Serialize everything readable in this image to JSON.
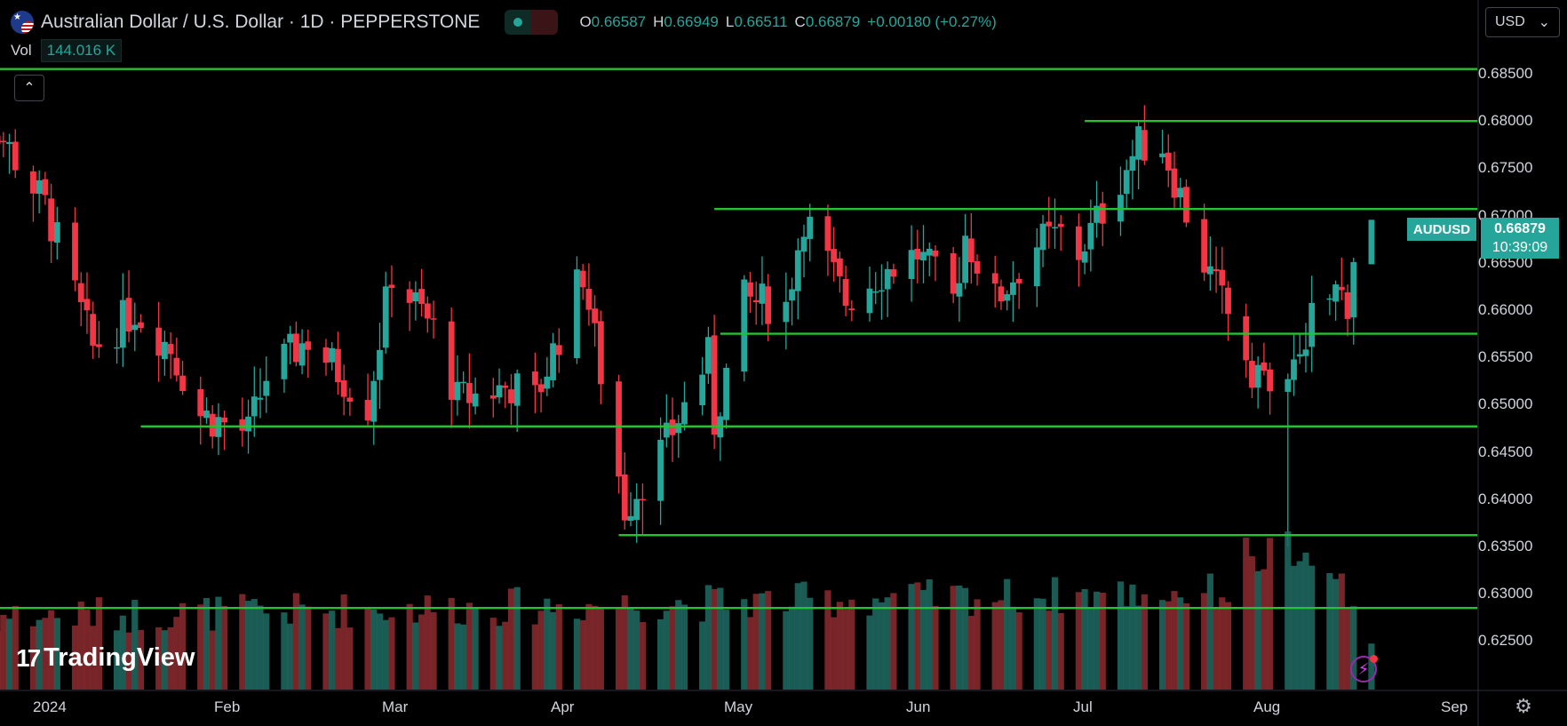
{
  "header": {
    "title": "Australian Dollar / U.S. Dollar · 1D · PEPPERSTONE",
    "flag_icon": "au-us-flag-icon",
    "status_icons": [
      "market-open-dot-icon",
      "delayed-wave-icon"
    ],
    "wave_glyph": "≈",
    "ohlc": [
      {
        "k": "O",
        "v": "0.66587"
      },
      {
        "k": "H",
        "v": "0.66949"
      },
      {
        "k": "L",
        "v": "0.66511"
      },
      {
        "k": "C",
        "v": "0.66879"
      }
    ],
    "change": "+0.00180 (+0.27%)"
  },
  "volume": {
    "label": "Vol",
    "value": "144.016 K"
  },
  "collapse_glyph": "⌃",
  "currency": {
    "label": "USD",
    "caret": "⌄"
  },
  "price_axis": [
    "0.68500",
    "0.68000",
    "0.67500",
    "0.67000",
    "0.66500",
    "0.66000",
    "0.65500",
    "0.65000",
    "0.64500",
    "0.64000",
    "0.63500",
    "0.63000",
    "0.62500"
  ],
  "time_axis": [
    "2024",
    "Feb",
    "Mar",
    "Apr",
    "May",
    "Jun",
    "Jul",
    "Aug",
    "Sep"
  ],
  "symbol_tag": "AUDUSD",
  "current_price": "0.66879",
  "countdown": "10:39:09",
  "logo": {
    "icon_text": "17",
    "text": "TradingView"
  },
  "lightning_glyph": "⚡",
  "settings_glyph": "⚙",
  "colors": {
    "up": "#26a69a",
    "down": "#f23645",
    "level_line": "#22c32e",
    "background": "#000000"
  },
  "chart_data": {
    "type": "candlestick",
    "symbol": "AUDUSD",
    "interval": "1D",
    "ylim": [
      0.6205,
      0.6885
    ],
    "x_range": [
      "2023-12-26",
      "2024-09-06"
    ],
    "horizontal_levels": [
      {
        "price": 0.6855,
        "from": "2023-12-26"
      },
      {
        "price": 0.68,
        "from": "2024-07-02"
      },
      {
        "price": 0.6707,
        "from": "2024-05-01"
      },
      {
        "price": 0.6575,
        "from": "2024-05-02"
      },
      {
        "price": 0.6477,
        "from": "2024-01-26"
      },
      {
        "price": 0.6362,
        "from": "2024-04-15"
      },
      {
        "price": 0.6285,
        "from": "2023-12-26"
      }
    ],
    "anchors": [
      {
        "date": "2023-12-28",
        "price": 0.684
      },
      {
        "date": "2024-01-10",
        "price": 0.671
      },
      {
        "date": "2024-01-18",
        "price": 0.656
      },
      {
        "date": "2024-01-25",
        "price": 0.66
      },
      {
        "date": "2024-01-31",
        "price": 0.656
      },
      {
        "date": "2024-02-05",
        "price": 0.649
      },
      {
        "date": "2024-02-13",
        "price": 0.647
      },
      {
        "date": "2024-02-16",
        "price": 0.653
      },
      {
        "date": "2024-02-23",
        "price": 0.657
      },
      {
        "date": "2024-03-04",
        "price": 0.65
      },
      {
        "date": "2024-03-08",
        "price": 0.664
      },
      {
        "date": "2024-03-15",
        "price": 0.658
      },
      {
        "date": "2024-03-19",
        "price": 0.6505
      },
      {
        "date": "2024-03-28",
        "price": 0.652
      },
      {
        "date": "2024-04-01",
        "price": 0.6505
      },
      {
        "date": "2024-04-09",
        "price": 0.664
      },
      {
        "date": "2024-04-16",
        "price": 0.639
      },
      {
        "date": "2024-04-19",
        "price": 0.642
      },
      {
        "date": "2024-04-23",
        "price": 0.646
      },
      {
        "date": "2024-04-30",
        "price": 0.655
      },
      {
        "date": "2024-05-01",
        "price": 0.648
      },
      {
        "date": "2024-05-06",
        "price": 0.661
      },
      {
        "date": "2024-05-13",
        "price": 0.6605
      },
      {
        "date": "2024-05-16",
        "price": 0.67
      },
      {
        "date": "2024-05-23",
        "price": 0.661
      },
      {
        "date": "2024-05-29",
        "price": 0.664
      },
      {
        "date": "2024-06-04",
        "price": 0.666
      },
      {
        "date": "2024-06-10",
        "price": 0.661
      },
      {
        "date": "2024-06-12",
        "price": 0.668
      },
      {
        "date": "2024-06-17",
        "price": 0.661
      },
      {
        "date": "2024-06-24",
        "price": 0.667
      },
      {
        "date": "2024-06-28",
        "price": 0.668
      },
      {
        "date": "2024-07-01",
        "price": 0.666
      },
      {
        "date": "2024-07-08",
        "price": 0.674
      },
      {
        "date": "2024-07-11",
        "price": 0.6775
      },
      {
        "date": "2024-07-15",
        "price": 0.6775
      },
      {
        "date": "2024-07-22",
        "price": 0.665
      },
      {
        "date": "2024-07-30",
        "price": 0.654
      },
      {
        "date": "2024-08-05",
        "price": 0.651
      },
      {
        "date": "2024-08-08",
        "price": 0.658
      },
      {
        "date": "2024-08-13",
        "price": 0.662
      },
      {
        "date": "2024-08-15",
        "price": 0.661
      },
      {
        "date": "2024-08-16",
        "price": 0.6658
      },
      {
        "date": "2024-08-19",
        "price": 0.6688
      }
    ],
    "volume_range": [
      0,
      165
    ]
  }
}
